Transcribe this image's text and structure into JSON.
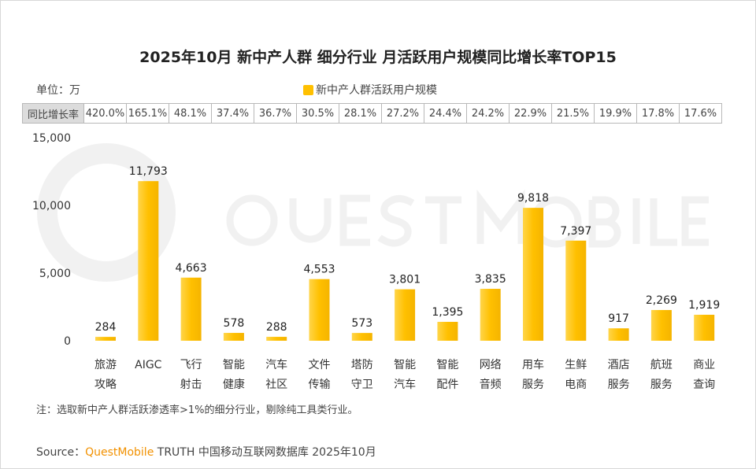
{
  "title": "2025年10月 新中产人群 细分行业 月活跃用户规模同比增长率TOP15",
  "unit": "单位：万",
  "yoy_header": "同比增长率",
  "yoy": [
    "420.0%",
    "165.1%",
    "48.1%",
    "37.4%",
    "36.7%",
    "30.5%",
    "28.1%",
    "27.2%",
    "24.4%",
    "24.2%",
    "22.9%",
    "21.5%",
    "19.9%",
    "17.8%",
    "17.6%"
  ],
  "note": "注：选取新中产人群活跃渗透率>1%的细分行业，剔除纯工具类行业。",
  "source": {
    "label": "Source：",
    "brand": "QuestMobile",
    "rest": " TRUTH 中国移动互联网数据库 2025年10月"
  },
  "watermark": "QUEST MOBILE",
  "colors": {
    "bar": "#FFC000",
    "bar_light": "#FFD54A",
    "brand": "#F29100"
  },
  "chart_data": {
    "type": "bar",
    "title": "2025年10月 新中产人群 细分行业 月活跃用户规模同比增长率TOP15",
    "categories": [
      [
        "旅游",
        "攻略"
      ],
      [
        "AIGC",
        ""
      ],
      [
        "飞行",
        "射击"
      ],
      [
        "智能",
        "健康"
      ],
      [
        "汽车",
        "社区"
      ],
      [
        "文件",
        "传输"
      ],
      [
        "塔防",
        "守卫"
      ],
      [
        "智能",
        "汽车"
      ],
      [
        "智能",
        "配件"
      ],
      [
        "网络",
        "音频"
      ],
      [
        "用车",
        "服务"
      ],
      [
        "生鲜",
        "电商"
      ],
      [
        "酒店",
        "服务"
      ],
      [
        "航班",
        "服务"
      ],
      [
        "商业",
        "查询"
      ]
    ],
    "series": [
      {
        "name": "新中产人群活跃用户规模",
        "values": [
          284,
          11793,
          4663,
          578,
          288,
          4553,
          573,
          3801,
          1395,
          3835,
          9818,
          7397,
          917,
          2269,
          1919
        ]
      }
    ],
    "value_labels": [
      "284",
      "11,793",
      "4,663",
      "578",
      "288",
      "4,553",
      "573",
      "3,801",
      "1,395",
      "3,835",
      "9,818",
      "7,397",
      "917",
      "2,269",
      "1,919"
    ],
    "yticks": [
      "0",
      "5,000",
      "10,000",
      "15,000"
    ],
    "ylim": [
      0,
      15000
    ],
    "legend": "top-center",
    "grid": false
  }
}
